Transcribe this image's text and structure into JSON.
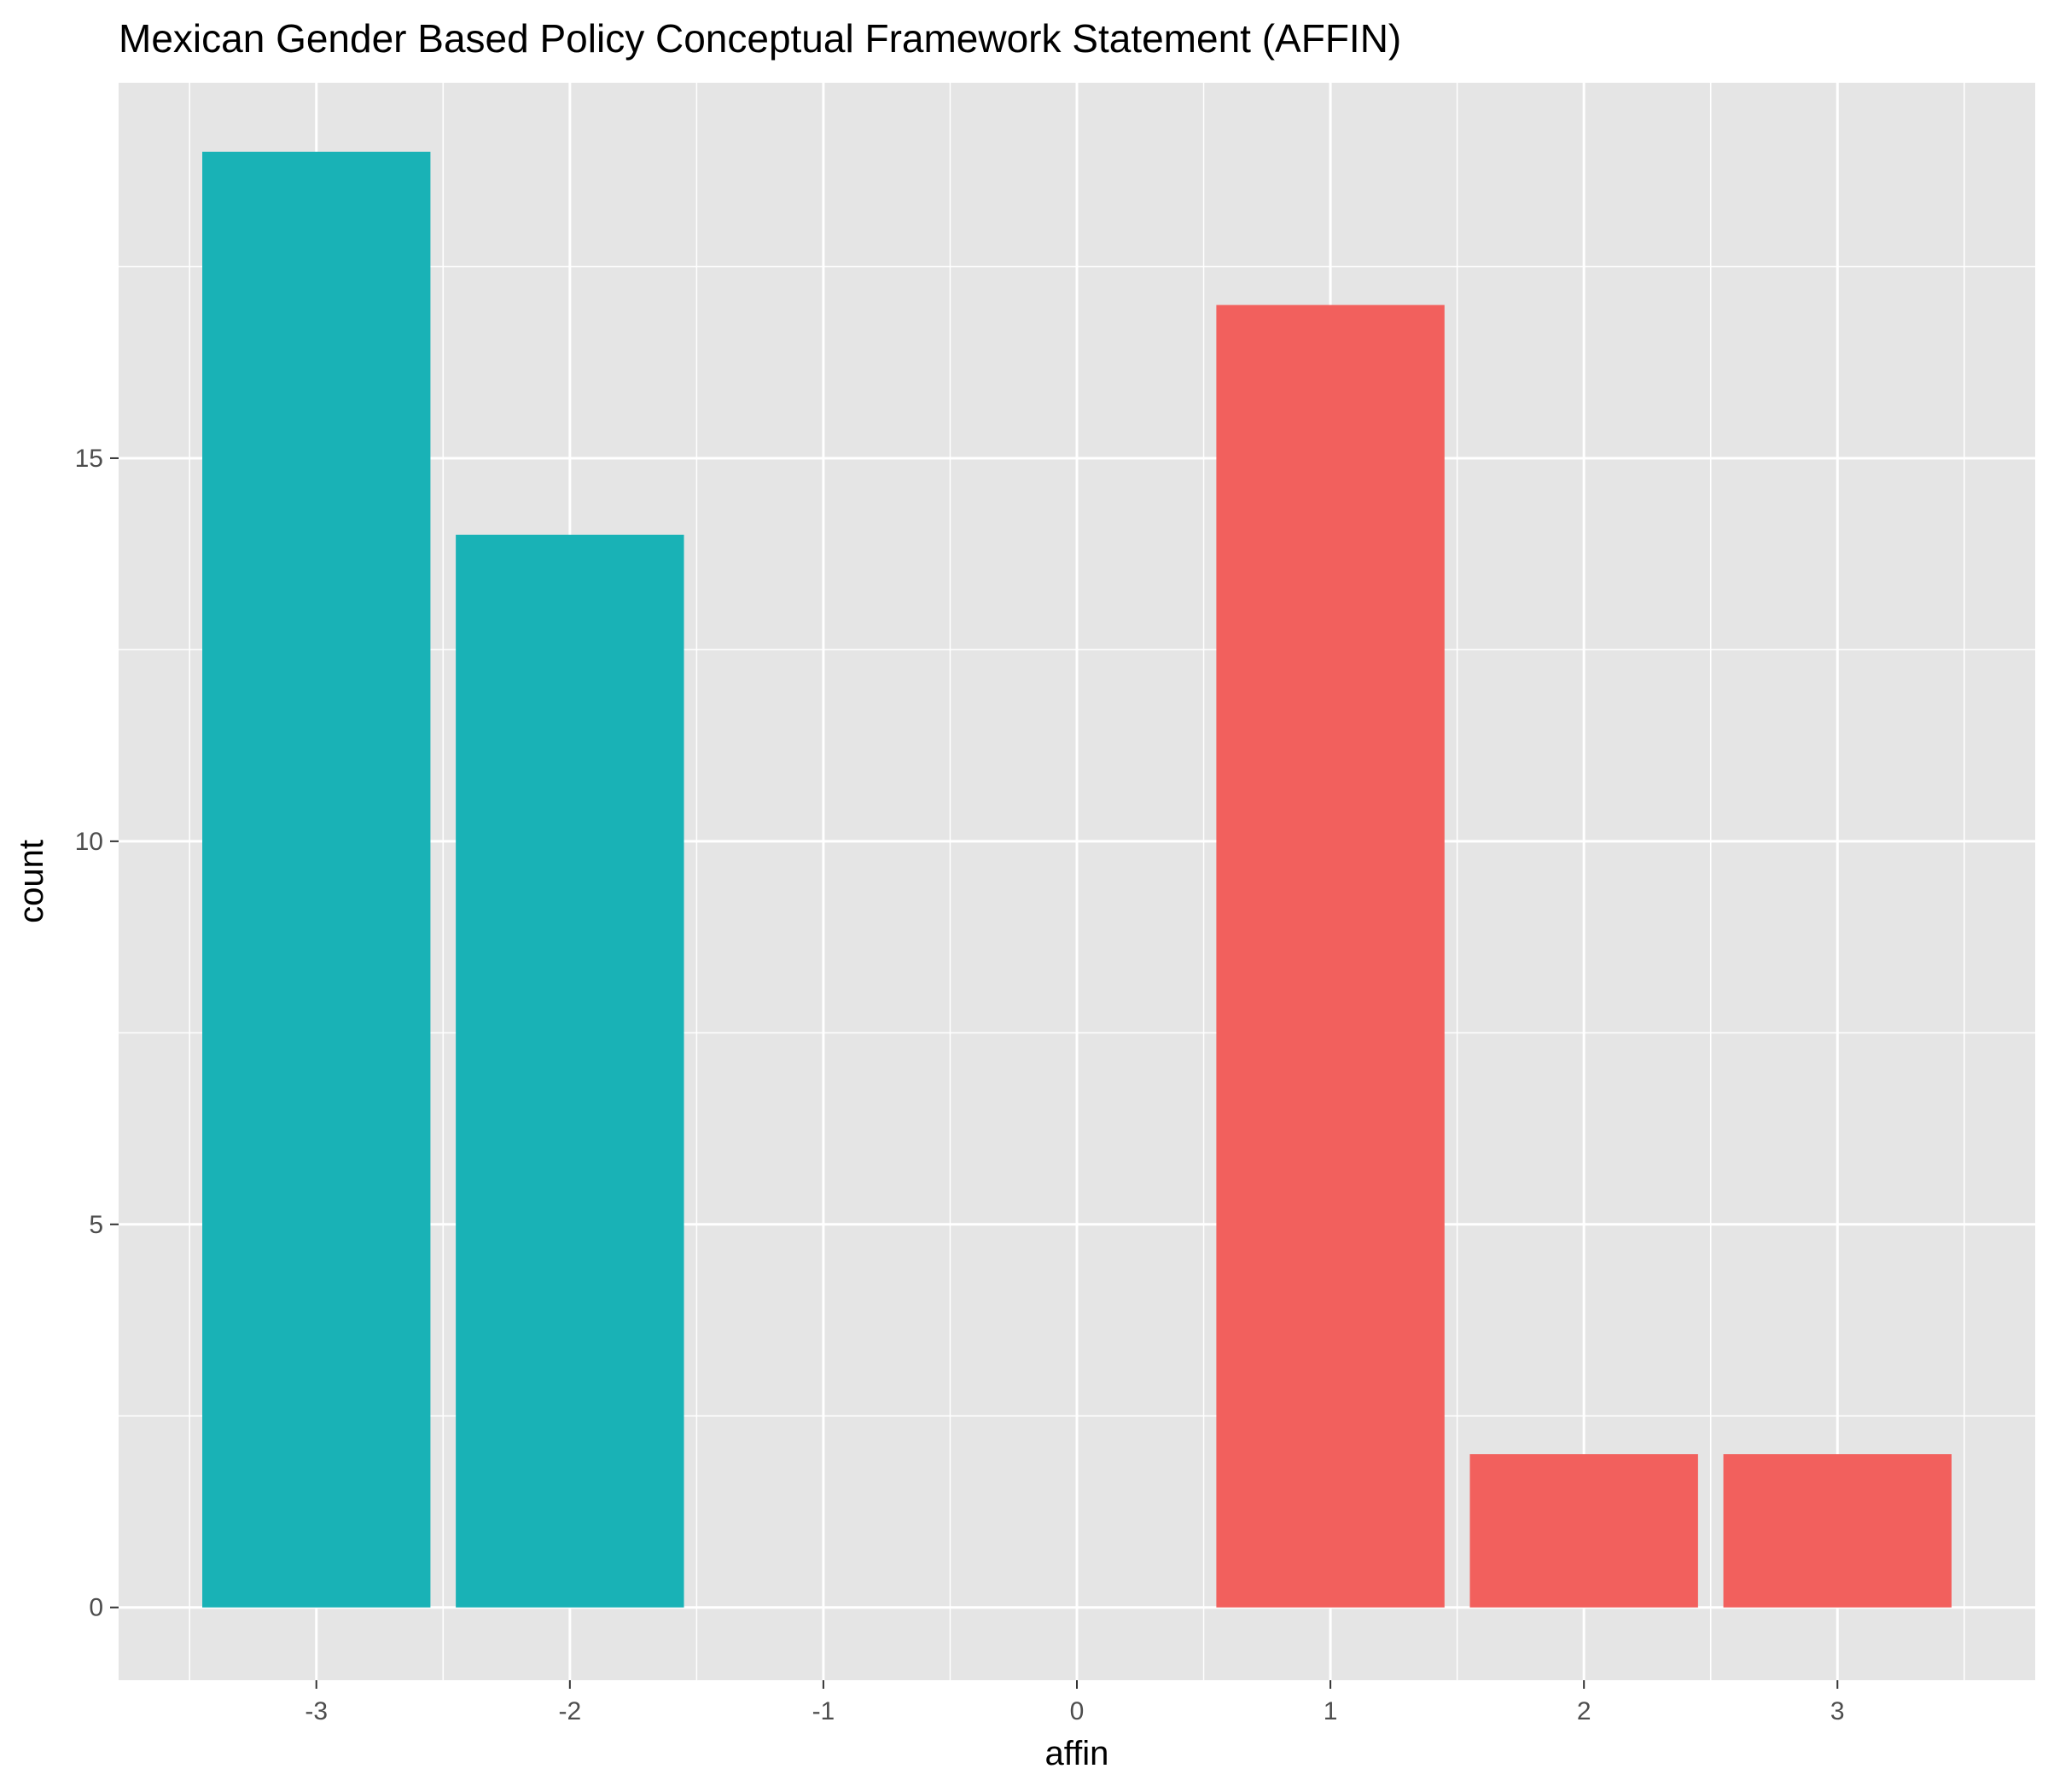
{
  "chart_data": {
    "type": "bar",
    "title": "Mexican Gender Based Policy Conceptual Framework Statement (AFFIN)",
    "xlabel": "affin",
    "ylabel": "count",
    "x": [
      -3,
      -2,
      -1,
      0,
      1,
      2,
      3
    ],
    "x_tick_labels": [
      "-3",
      "-2",
      "-1",
      "0",
      "1",
      "2",
      "3"
    ],
    "y_ticks": [
      0,
      5,
      10,
      15
    ],
    "y_tick_labels": [
      "0",
      "5",
      "10",
      "15"
    ],
    "xlim": [
      -3.78,
      3.78
    ],
    "ylim": [
      -0.95,
      19.9
    ],
    "grid": true,
    "legend": "none",
    "colors": {
      "panel_background": "#e5e5e5",
      "gridline": "#ffffff",
      "negative_bar": "#19b2b6",
      "positive_bar": "#f2605d"
    },
    "bars": [
      {
        "x": -3,
        "value": 19,
        "color": "#19b2b6"
      },
      {
        "x": -2,
        "value": 14,
        "color": "#19b2b6"
      },
      {
        "x": 1,
        "value": 17,
        "color": "#f2605d"
      },
      {
        "x": 2,
        "value": 2,
        "color": "#f2605d"
      },
      {
        "x": 3,
        "value": 2,
        "color": "#f2605d"
      }
    ]
  }
}
